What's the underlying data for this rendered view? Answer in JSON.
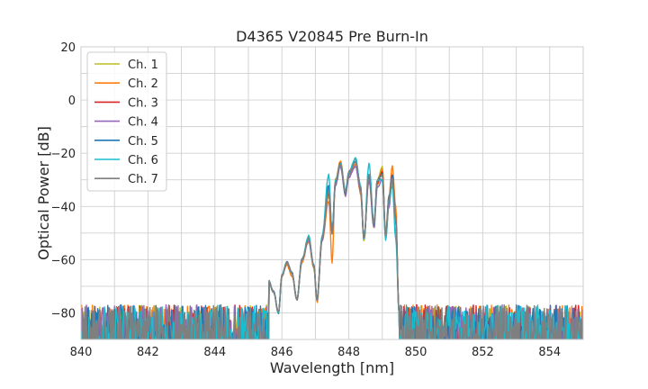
{
  "chart_data": {
    "type": "line",
    "title": "D4365 V20845 Pre Burn-In",
    "xlabel": "Wavelength [nm]",
    "ylabel": "Optical Power [dB]",
    "xlim": [
      840,
      855
    ],
    "ylim": [
      -90,
      20
    ],
    "xticks": [
      840,
      842,
      844,
      846,
      848,
      850,
      852,
      854
    ],
    "yticks": [
      20,
      0,
      -20,
      -40,
      -60,
      -80
    ],
    "grid": true,
    "legend_position": "top-left",
    "noise_floor_db": -85,
    "series": [
      {
        "name": "Ch. 1",
        "color": "#bcbd22",
        "peak_points": [
          [
            845.6,
            -68
          ],
          [
            845.75,
            -72
          ],
          [
            845.9,
            -80
          ],
          [
            846.0,
            -66
          ],
          [
            846.15,
            -61
          ],
          [
            846.3,
            -65
          ],
          [
            846.45,
            -75
          ],
          [
            846.6,
            -60
          ],
          [
            846.8,
            -52
          ],
          [
            846.95,
            -62
          ],
          [
            847.05,
            -75
          ],
          [
            847.2,
            -52
          ],
          [
            847.4,
            -36
          ],
          [
            847.5,
            -50
          ],
          [
            847.6,
            -32
          ],
          [
            847.75,
            -24
          ],
          [
            847.9,
            -36
          ],
          [
            848.0,
            -28
          ],
          [
            848.2,
            -22
          ],
          [
            848.35,
            -33
          ],
          [
            848.45,
            -53
          ],
          [
            848.6,
            -28
          ],
          [
            848.75,
            -48
          ],
          [
            848.85,
            -30
          ],
          [
            849.0,
            -25
          ],
          [
            849.1,
            -51
          ],
          [
            849.2,
            -37
          ],
          [
            849.3,
            -30
          ],
          [
            849.4,
            -45
          ],
          [
            849.5,
            -80
          ]
        ]
      },
      {
        "name": "Ch. 2",
        "color": "#ff7f0e",
        "peak_points": [
          [
            845.6,
            -68
          ],
          [
            845.75,
            -72
          ],
          [
            845.9,
            -80
          ],
          [
            846.0,
            -66
          ],
          [
            846.15,
            -62
          ],
          [
            846.3,
            -66
          ],
          [
            846.45,
            -75
          ],
          [
            846.6,
            -61
          ],
          [
            846.8,
            -53
          ],
          [
            846.95,
            -63
          ],
          [
            847.05,
            -76
          ],
          [
            847.2,
            -53
          ],
          [
            847.4,
            -38
          ],
          [
            847.5,
            -61
          ],
          [
            847.6,
            -30
          ],
          [
            847.75,
            -23
          ],
          [
            847.9,
            -34
          ],
          [
            848.0,
            -29
          ],
          [
            848.2,
            -24
          ],
          [
            848.35,
            -35
          ],
          [
            848.45,
            -52
          ],
          [
            848.6,
            -30
          ],
          [
            848.75,
            -46
          ],
          [
            848.85,
            -32
          ],
          [
            849.0,
            -26
          ],
          [
            849.1,
            -50
          ],
          [
            849.2,
            -36
          ],
          [
            849.3,
            -25
          ],
          [
            849.4,
            -40
          ],
          [
            849.5,
            -80
          ]
        ]
      },
      {
        "name": "Ch. 3",
        "color": "#d62728",
        "peak_points": [
          [
            845.6,
            -68
          ],
          [
            845.75,
            -72
          ],
          [
            845.9,
            -80
          ],
          [
            846.0,
            -66
          ],
          [
            846.15,
            -61
          ],
          [
            846.3,
            -65
          ],
          [
            846.45,
            -75
          ],
          [
            846.6,
            -60
          ],
          [
            846.8,
            -52
          ],
          [
            846.95,
            -62
          ],
          [
            847.05,
            -75
          ],
          [
            847.2,
            -52
          ],
          [
            847.4,
            -35
          ],
          [
            847.5,
            -50
          ],
          [
            847.6,
            -31
          ],
          [
            847.75,
            -24
          ],
          [
            847.9,
            -35
          ],
          [
            848.0,
            -27
          ],
          [
            848.2,
            -23
          ],
          [
            848.35,
            -32
          ],
          [
            848.45,
            -52
          ],
          [
            848.6,
            -29
          ],
          [
            848.75,
            -47
          ],
          [
            848.85,
            -31
          ],
          [
            849.0,
            -27
          ],
          [
            849.1,
            -52
          ],
          [
            849.2,
            -38
          ],
          [
            849.3,
            -28
          ],
          [
            849.4,
            -44
          ],
          [
            849.5,
            -80
          ]
        ]
      },
      {
        "name": "Ch. 4",
        "color": "#9467bd",
        "peak_points": [
          [
            845.6,
            -68
          ],
          [
            845.75,
            -72
          ],
          [
            845.9,
            -80
          ],
          [
            846.0,
            -66
          ],
          [
            846.15,
            -61
          ],
          [
            846.3,
            -65
          ],
          [
            846.45,
            -75
          ],
          [
            846.6,
            -60
          ],
          [
            846.8,
            -53
          ],
          [
            846.95,
            -62
          ],
          [
            847.05,
            -75
          ],
          [
            847.2,
            -53
          ],
          [
            847.4,
            -33
          ],
          [
            847.5,
            -50
          ],
          [
            847.6,
            -32
          ],
          [
            847.75,
            -25
          ],
          [
            847.9,
            -36
          ],
          [
            848.0,
            -29
          ],
          [
            848.2,
            -25
          ],
          [
            848.35,
            -34
          ],
          [
            848.45,
            -52
          ],
          [
            848.6,
            -30
          ],
          [
            848.75,
            -48
          ],
          [
            848.85,
            -33
          ],
          [
            849.0,
            -30
          ],
          [
            849.1,
            -51
          ],
          [
            849.2,
            -40
          ],
          [
            849.3,
            -30
          ],
          [
            849.4,
            -45
          ],
          [
            849.5,
            -80
          ]
        ]
      },
      {
        "name": "Ch. 5",
        "color": "#1f77b4",
        "peak_points": [
          [
            845.6,
            -68
          ],
          [
            845.75,
            -72
          ],
          [
            845.9,
            -80
          ],
          [
            846.0,
            -66
          ],
          [
            846.15,
            -61
          ],
          [
            846.3,
            -65
          ],
          [
            846.45,
            -75
          ],
          [
            846.6,
            -60
          ],
          [
            846.8,
            -52
          ],
          [
            846.95,
            -62
          ],
          [
            847.05,
            -75
          ],
          [
            847.2,
            -52
          ],
          [
            847.4,
            -32
          ],
          [
            847.5,
            -50
          ],
          [
            847.6,
            -31
          ],
          [
            847.75,
            -24
          ],
          [
            847.9,
            -35
          ],
          [
            848.0,
            -28
          ],
          [
            848.2,
            -22
          ],
          [
            848.35,
            -33
          ],
          [
            848.45,
            -52
          ],
          [
            848.6,
            -28
          ],
          [
            848.75,
            -47
          ],
          [
            848.85,
            -30
          ],
          [
            849.0,
            -28
          ],
          [
            849.1,
            -51
          ],
          [
            849.2,
            -36
          ],
          [
            849.3,
            -28
          ],
          [
            849.4,
            -45
          ],
          [
            849.5,
            -80
          ]
        ]
      },
      {
        "name": "Ch. 6",
        "color": "#17becf",
        "peak_points": [
          [
            845.6,
            -68
          ],
          [
            845.75,
            -72
          ],
          [
            845.9,
            -80
          ],
          [
            846.0,
            -66
          ],
          [
            846.15,
            -61
          ],
          [
            846.3,
            -65
          ],
          [
            846.45,
            -75
          ],
          [
            846.6,
            -60
          ],
          [
            846.8,
            -51
          ],
          [
            846.95,
            -62
          ],
          [
            847.05,
            -75
          ],
          [
            847.2,
            -51
          ],
          [
            847.4,
            -28
          ],
          [
            847.5,
            -50
          ],
          [
            847.6,
            -30
          ],
          [
            847.75,
            -24
          ],
          [
            847.9,
            -34
          ],
          [
            848.0,
            -27
          ],
          [
            848.2,
            -22
          ],
          [
            848.35,
            -32
          ],
          [
            848.45,
            -52
          ],
          [
            848.6,
            -24
          ],
          [
            848.75,
            -46
          ],
          [
            848.85,
            -30
          ],
          [
            849.0,
            -30
          ],
          [
            849.1,
            -53
          ],
          [
            849.2,
            -38
          ],
          [
            849.3,
            -32
          ],
          [
            849.4,
            -52
          ],
          [
            849.5,
            -80
          ]
        ]
      },
      {
        "name": "Ch. 7",
        "color": "#7f7f7f",
        "peak_points": [
          [
            845.6,
            -68
          ],
          [
            845.75,
            -72
          ],
          [
            845.9,
            -80
          ],
          [
            846.0,
            -66
          ],
          [
            846.15,
            -61
          ],
          [
            846.3,
            -65
          ],
          [
            846.45,
            -75
          ],
          [
            846.6,
            -60
          ],
          [
            846.8,
            -52
          ],
          [
            846.95,
            -62
          ],
          [
            847.05,
            -75
          ],
          [
            847.2,
            -52
          ],
          [
            847.4,
            -34
          ],
          [
            847.5,
            -50
          ],
          [
            847.6,
            -31
          ],
          [
            847.75,
            -24
          ],
          [
            847.9,
            -35
          ],
          [
            848.0,
            -28
          ],
          [
            848.2,
            -23
          ],
          [
            848.35,
            -33
          ],
          [
            848.45,
            -52
          ],
          [
            848.6,
            -28
          ],
          [
            848.75,
            -47
          ],
          [
            848.85,
            -30
          ],
          [
            849.0,
            -28
          ],
          [
            849.1,
            -51
          ],
          [
            849.2,
            -37
          ],
          [
            849.3,
            -29
          ],
          [
            849.4,
            -45
          ],
          [
            849.5,
            -80
          ]
        ]
      }
    ]
  }
}
